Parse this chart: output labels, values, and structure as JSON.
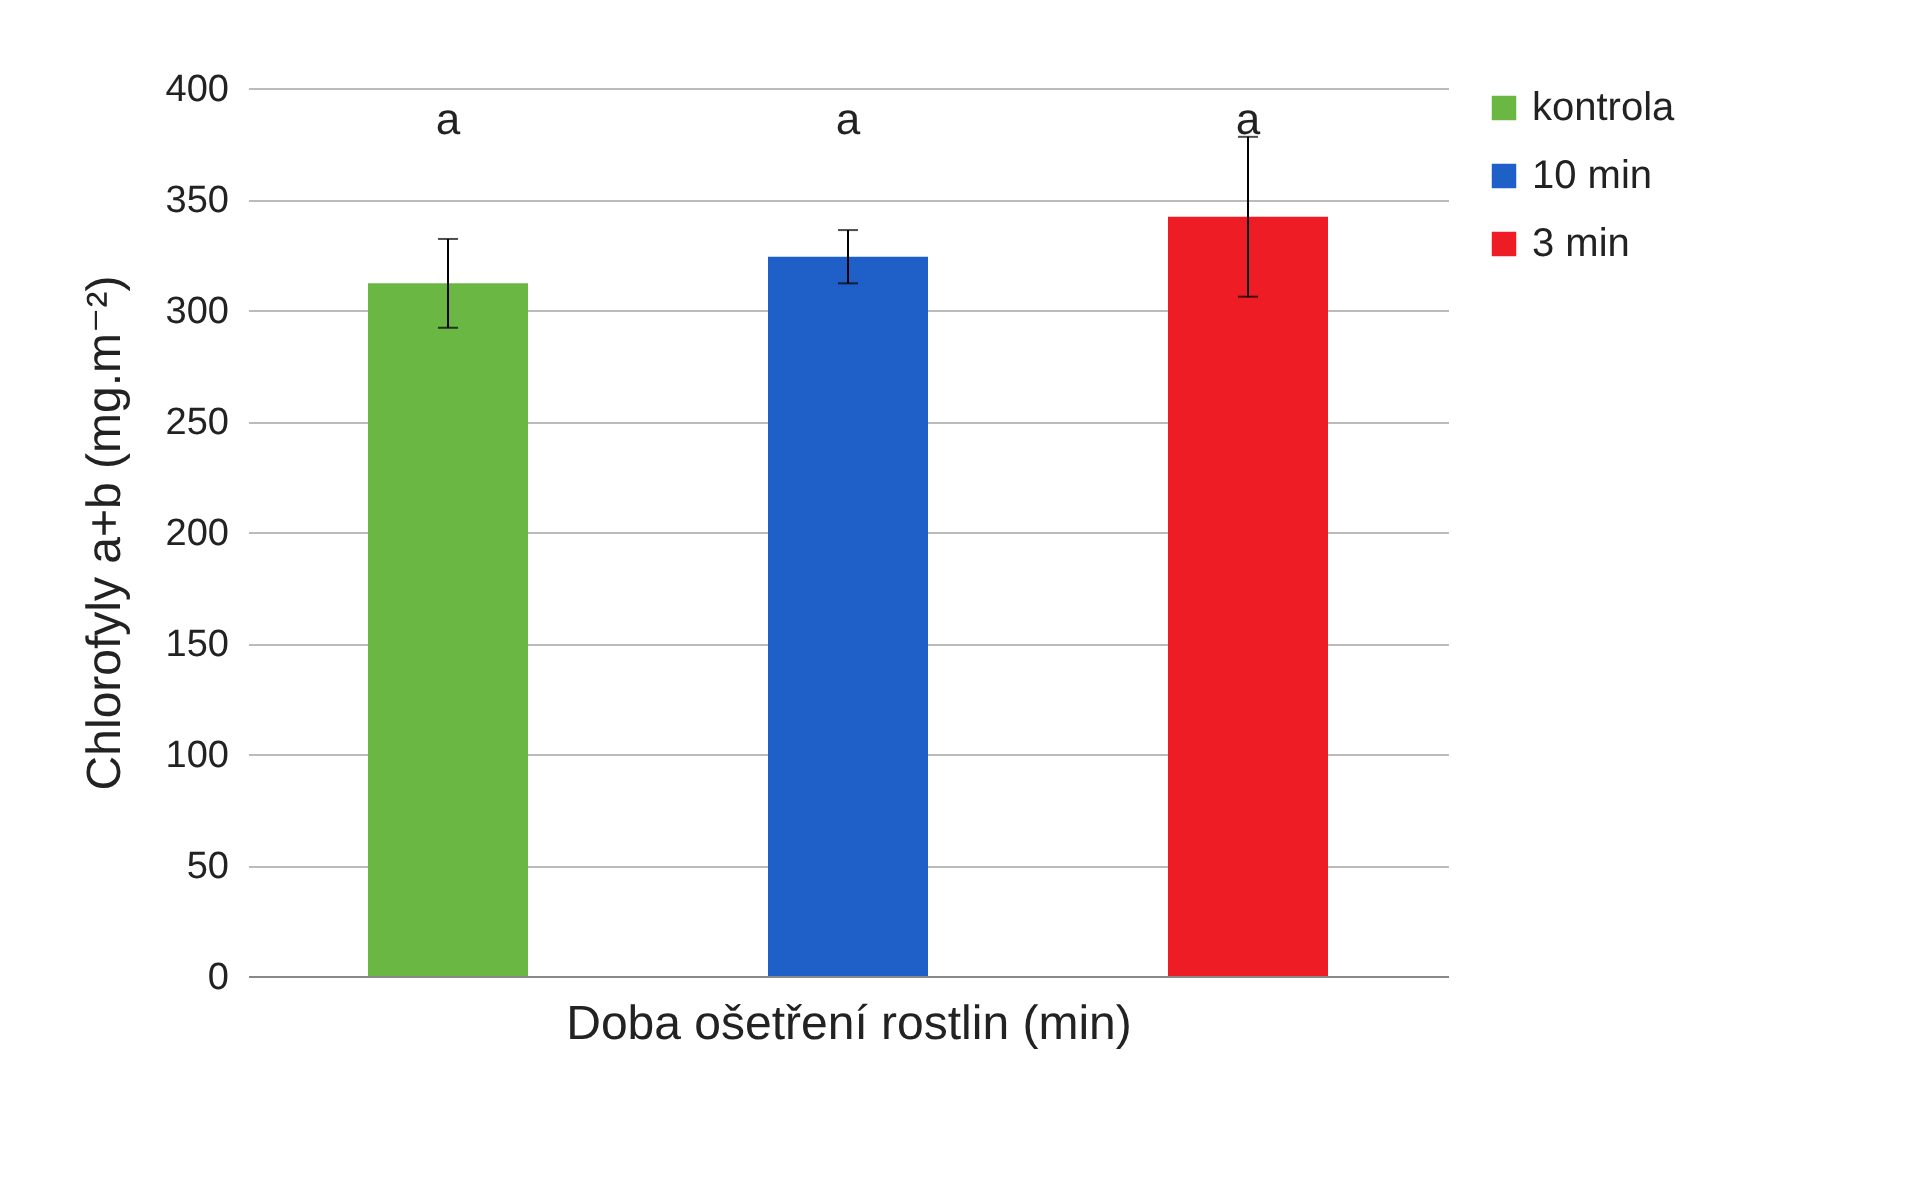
{
  "chart_data": {
    "type": "bar",
    "xlabel": "Doba ošetření rostlin (min)",
    "ylabel": "Chlorofyly a+b (mg.m⁻²)",
    "categories": [
      null
    ],
    "series": [
      {
        "name": "kontrola",
        "color": "#6ab843",
        "values": [
          312
        ],
        "errors": [
          20
        ]
      },
      {
        "name": "10 min",
        "color": "#1f5fc8",
        "values": [
          324
        ],
        "errors": [
          12
        ]
      },
      {
        "name": "3 min",
        "color": "#ee1c25",
        "values": [
          342
        ],
        "errors": [
          36
        ]
      }
    ],
    "annotations": [
      "a",
      "a",
      "a"
    ],
    "ylim": [
      0,
      400
    ],
    "yticks": [
      0,
      50,
      100,
      150,
      200,
      250,
      300,
      350,
      400
    ],
    "grid": "y",
    "legend": "right"
  }
}
